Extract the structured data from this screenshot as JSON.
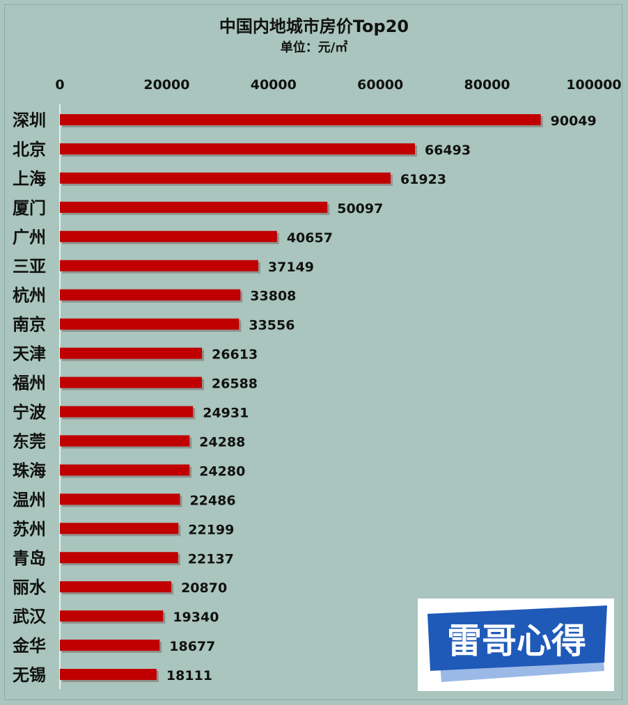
{
  "chart_data": {
    "type": "bar",
    "orientation": "horizontal",
    "title": "中国内地城市房价Top20",
    "subtitle": "单位：元/㎡",
    "categories": [
      "深圳",
      "北京",
      "上海",
      "厦门",
      "广州",
      "三亚",
      "杭州",
      "南京",
      "天津",
      "福州",
      "宁波",
      "东莞",
      "珠海",
      "温州",
      "苏州",
      "青岛",
      "丽水",
      "武汉",
      "金华",
      "无锡"
    ],
    "values": [
      90049,
      66493,
      61923,
      50097,
      40657,
      37149,
      33808,
      33556,
      26613,
      26588,
      24931,
      24288,
      24280,
      22486,
      22199,
      22137,
      20870,
      19340,
      18677,
      18111
    ],
    "xlim": [
      0,
      100000
    ],
    "xticks": [
      "0",
      "20000",
      "40000",
      "60000",
      "80000",
      "100000"
    ],
    "xtick_values": [
      0,
      20000,
      40000,
      60000,
      80000,
      100000
    ],
    "axis_position": "top",
    "grid": false,
    "legend": "none",
    "colors": {
      "bar": "#c00000",
      "bar_shadow": "#7a6a6a",
      "background": "#a9c5bd",
      "axis": "#ffffff"
    }
  },
  "watermark": {
    "text": "雷哥心得",
    "bg_color": "#1f5ab8",
    "shadow_color": "#9ab9e6"
  }
}
